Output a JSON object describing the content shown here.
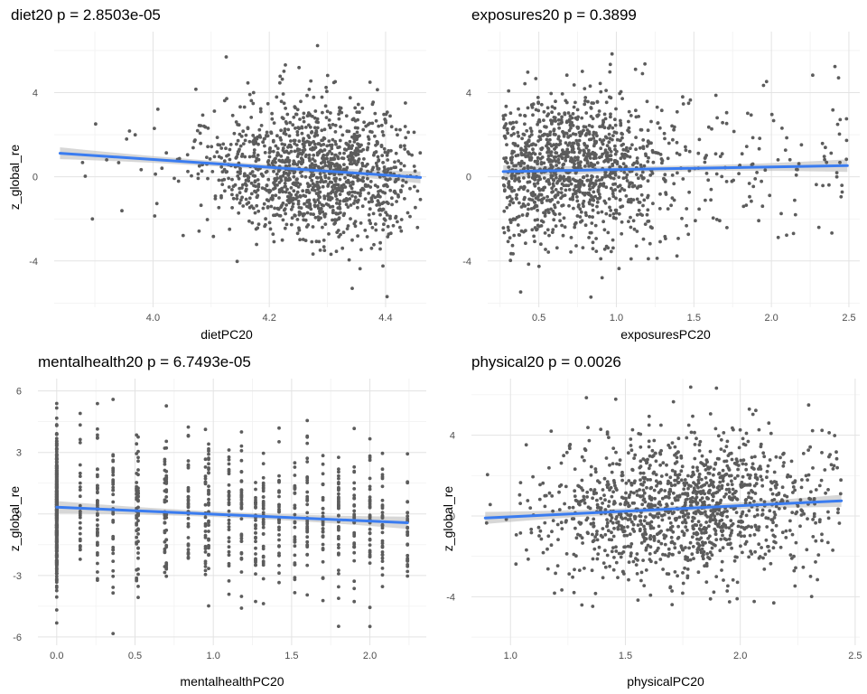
{
  "chart_data": [
    {
      "type": "scatter",
      "title": "diet20 p = 2.8503e-05",
      "xlabel": "dietPC20",
      "ylabel": "z_global_re",
      "xlim": [
        3.83,
        4.47
      ],
      "ylim": [
        -6.2,
        6.9
      ],
      "xticks": [
        4.0,
        4.2,
        4.4
      ],
      "xtick_labels": [
        "4.0",
        "4.2",
        "4.4"
      ],
      "yticks": [
        -4,
        0,
        4
      ],
      "ytick_labels": [
        "-4",
        "0",
        "4"
      ],
      "x_range": [
        3.84,
        4.46
      ],
      "x_center": 4.28,
      "x_sd": 0.095,
      "y_sd": 1.65,
      "n_points": 1300,
      "fit": {
        "x": [
          3.84,
          4.46
        ],
        "y": [
          1.12,
          -0.03
        ],
        "se": 0.28
      },
      "grid": true,
      "colors": {
        "points": "#5c5c5c",
        "fit": "#3a7cf0",
        "band": "#bdbdbd"
      }
    },
    {
      "type": "scatter",
      "title": "exposures20 p = 0.3899",
      "xlabel": "exposuresPC20",
      "ylabel": "z_global_re",
      "xlim": [
        0.17,
        2.57
      ],
      "ylim": [
        -6.2,
        6.9
      ],
      "xticks": [
        0.5,
        1.0,
        1.5,
        2.0,
        2.5
      ],
      "xtick_labels": [
        "0.5",
        "1.0",
        "1.5",
        "2.0",
        "2.5"
      ],
      "yticks": [
        -4,
        0,
        4
      ],
      "ytick_labels": [
        "-4",
        "0",
        "4"
      ],
      "x_range": [
        0.27,
        2.49
      ],
      "x_center": 0.65,
      "x_sd": 0.38,
      "y_sd": 1.75,
      "n_points": 1300,
      "fit": {
        "x": [
          0.27,
          2.49
        ],
        "y": [
          0.25,
          0.53
        ],
        "se": 0.3
      },
      "grid": true,
      "colors": {
        "points": "#5c5c5c",
        "fit": "#3a7cf0",
        "band": "#bdbdbd"
      }
    },
    {
      "type": "scatter",
      "title": "mentalhealth20 p = 6.7493e-05",
      "xlabel": "mentalhealthPC20",
      "ylabel": "z_global_re",
      "xlim": [
        -0.12,
        2.36
      ],
      "ylim": [
        -6.4,
        6.6
      ],
      "xticks": [
        0.0,
        0.5,
        1.0,
        1.5,
        2.0
      ],
      "xtick_labels": [
        "0.0",
        "0.5",
        "1.0",
        "1.5",
        "2.0"
      ],
      "yticks": [
        -6,
        -3,
        0,
        3,
        6
      ],
      "ytick_labels": [
        "-6",
        "-3",
        "0",
        "3",
        "6"
      ],
      "x_range": [
        0.0,
        2.24
      ],
      "x_discrete": [
        0.0,
        0.15,
        0.26,
        0.36,
        0.51,
        0.52,
        0.69,
        0.7,
        0.84,
        0.95,
        0.97,
        1.1,
        1.18,
        1.27,
        1.32,
        1.42,
        1.52,
        1.6,
        1.7,
        1.8,
        1.9,
        2.0,
        2.08,
        2.24
      ],
      "x_center": 0.0,
      "x_sd": 0.0,
      "y_sd": 1.8,
      "n_points": 1300,
      "fit": {
        "x": [
          0.0,
          2.24
        ],
        "y": [
          0.33,
          -0.43
        ],
        "se": 0.3
      },
      "grid": true,
      "colors": {
        "points": "#5c5c5c",
        "fit": "#3a7cf0",
        "band": "#bdbdbd"
      }
    },
    {
      "type": "scatter",
      "title": "physical20 p = 0.0026",
      "xlabel": "physicalPC20",
      "ylabel": "z_global_re",
      "xlim": [
        0.83,
        2.52
      ],
      "ylim": [
        -6.4,
        6.8
      ],
      "xticks": [
        1.0,
        1.5,
        2.0,
        2.5
      ],
      "xtick_labels": [
        "1.0",
        "1.5",
        "2.0",
        "2.5"
      ],
      "yticks": [
        -4,
        0,
        4
      ],
      "ytick_labels": [
        "-4",
        "0",
        "4"
      ],
      "x_range": [
        0.89,
        2.44
      ],
      "x_center": 1.75,
      "x_sd": 0.32,
      "y_sd": 1.75,
      "n_points": 1300,
      "fit": {
        "x": [
          0.89,
          2.44
        ],
        "y": [
          -0.1,
          0.75
        ],
        "se": 0.3
      },
      "grid": true,
      "colors": {
        "points": "#5c5c5c",
        "fit": "#3a7cf0",
        "band": "#bdbdbd"
      }
    }
  ]
}
